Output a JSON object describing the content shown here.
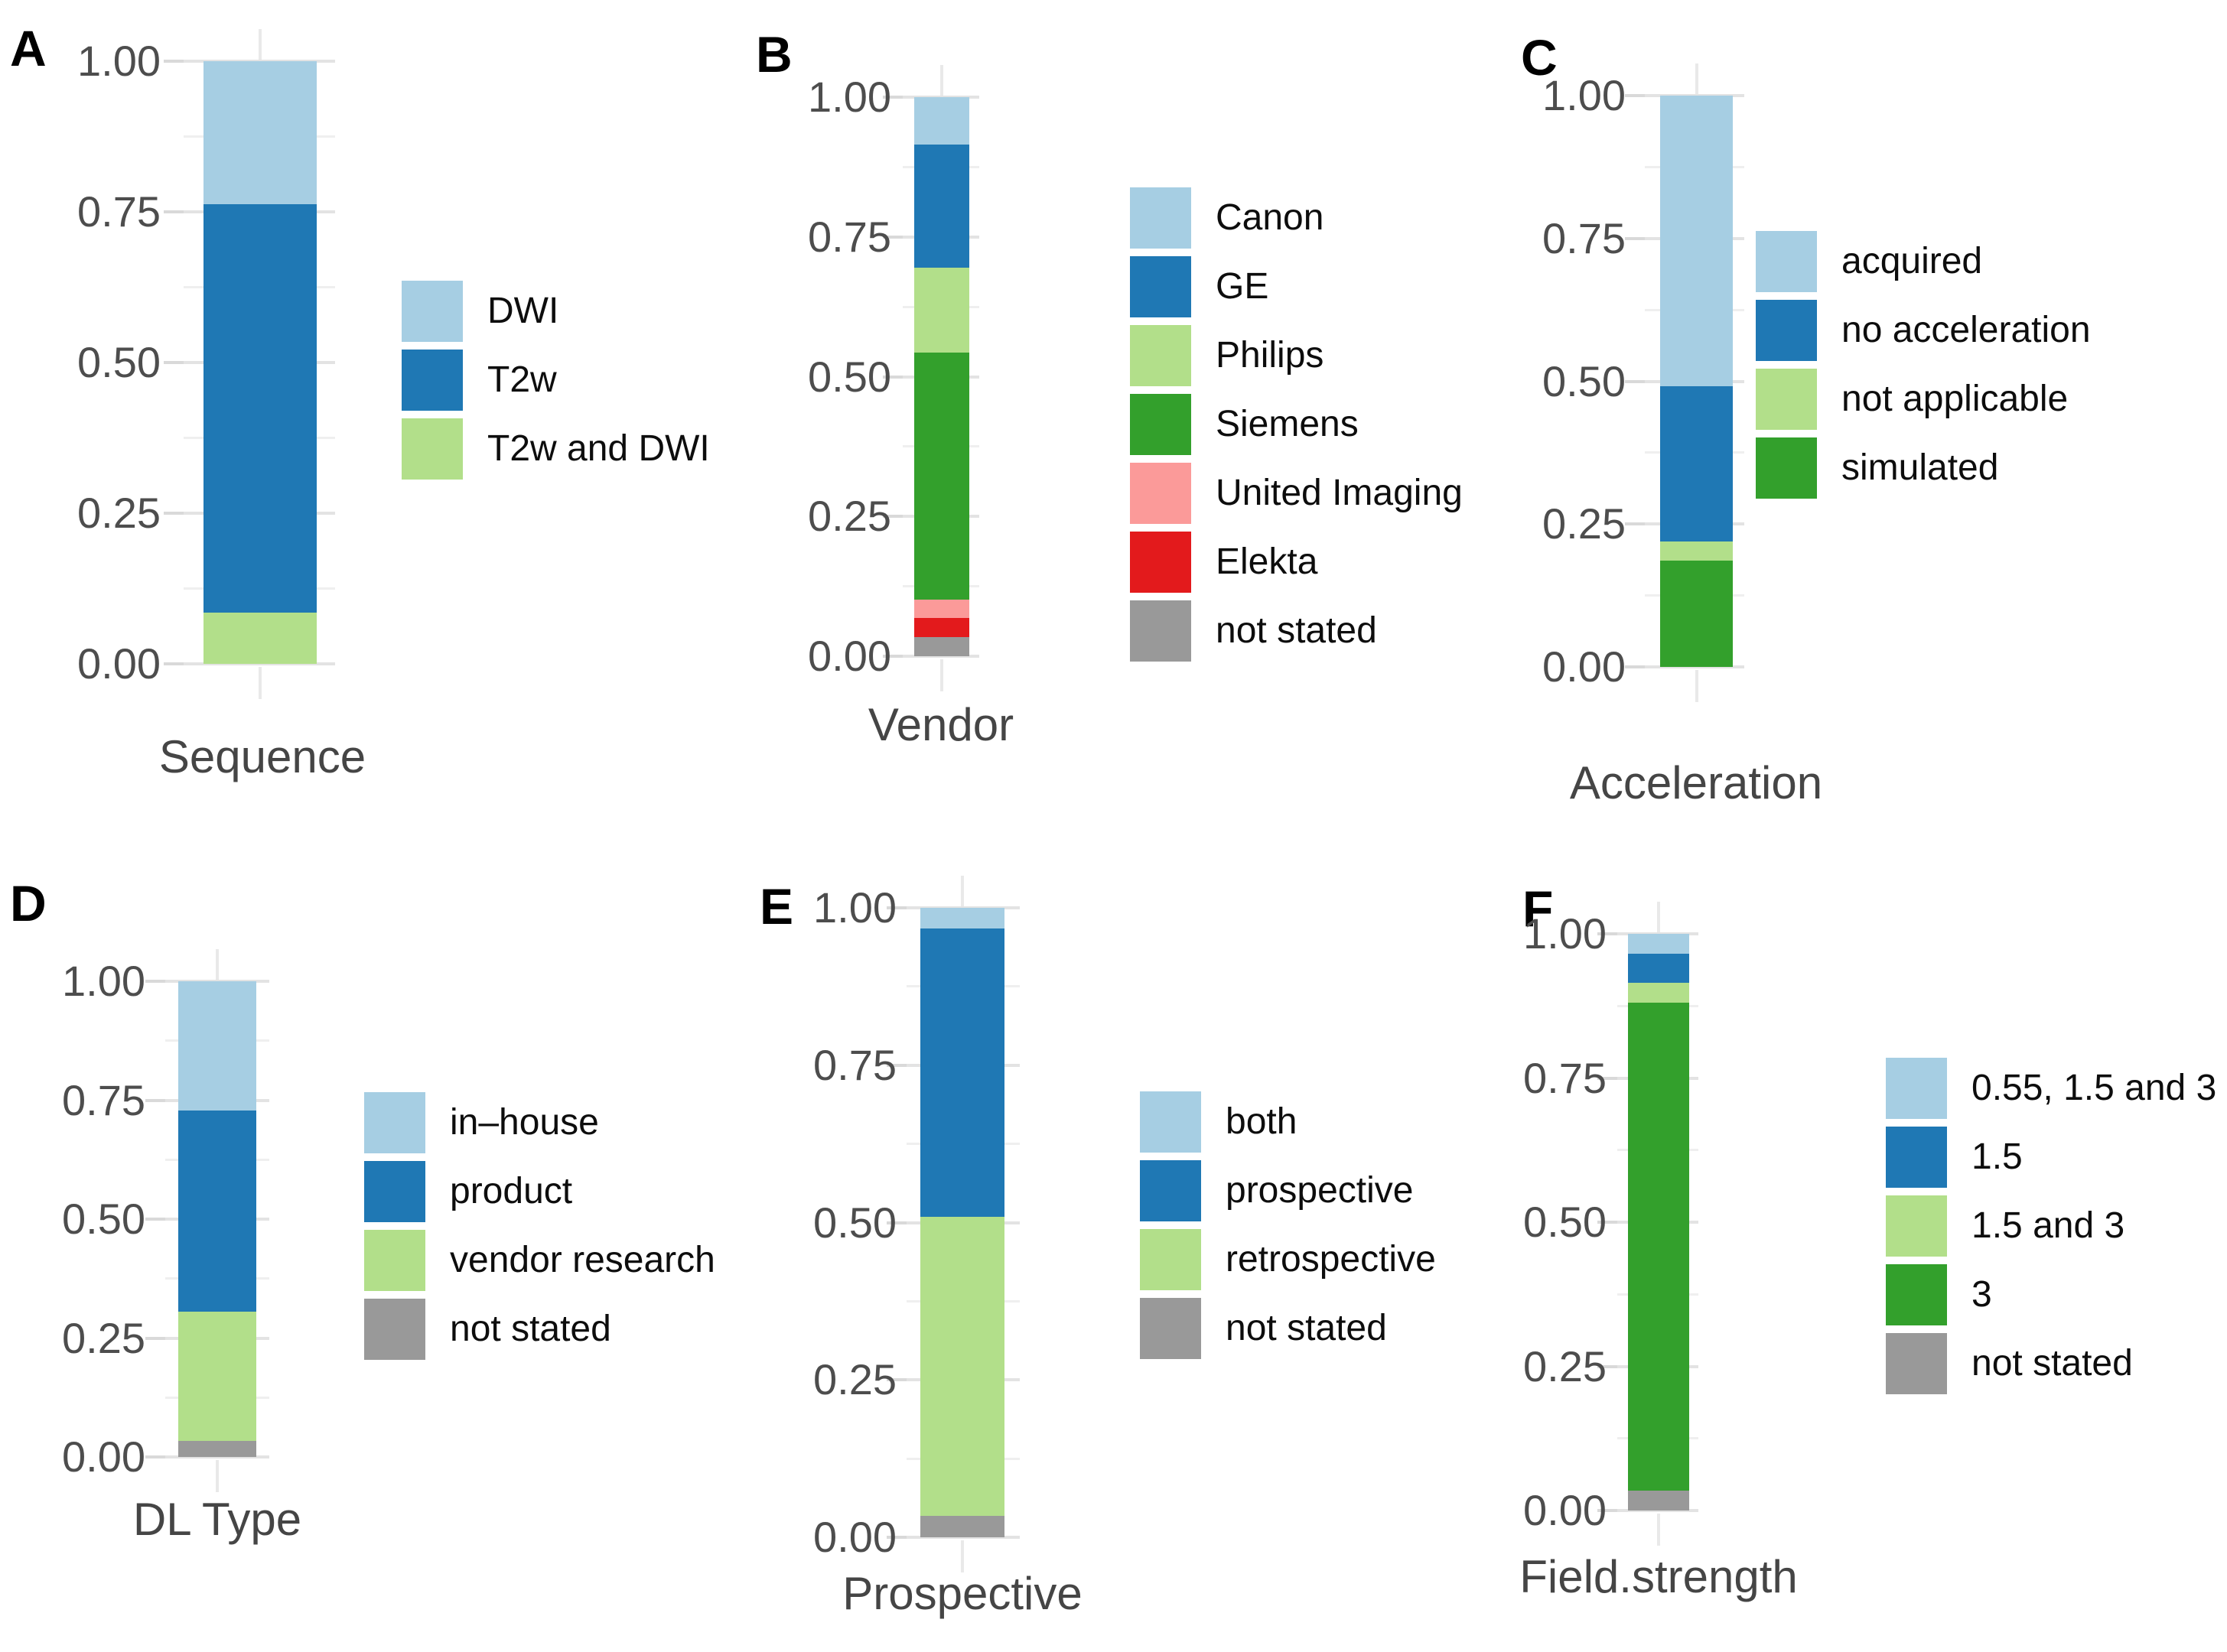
{
  "palette": {
    "light_blue": "#A6CEE3",
    "blue": "#1F78B4",
    "light_green": "#B2DF8A",
    "green": "#33A02C",
    "pink": "#FB9A99",
    "red": "#E31A1C",
    "gray": "#999999"
  },
  "axis": {
    "tick_labels": [
      "1.00",
      "0.75",
      "0.50",
      "0.25",
      "0.00"
    ],
    "tick_values": [
      1.0,
      0.75,
      0.5,
      0.25,
      0.0
    ],
    "minor_gridline_values": [
      0.875,
      0.625,
      0.375,
      0.125
    ],
    "text_color": "#4d4d4d"
  },
  "chart_data": [
    {
      "panel": "A",
      "type": "bar",
      "xlabel": "Sequence",
      "ylim": [
        0,
        1
      ],
      "grid": true,
      "legend_position": "right",
      "segments_bottom_to_top": [
        {
          "label": "T2w and DWI",
          "color": "light_green",
          "value": 0.085
        },
        {
          "label": "T2w",
          "color": "blue",
          "value": 0.678
        },
        {
          "label": "DWI",
          "color": "light_blue",
          "value": 0.237
        }
      ],
      "legend": [
        {
          "label": "DWI",
          "color": "light_blue"
        },
        {
          "label": "T2w",
          "color": "blue"
        },
        {
          "label": "T2w and DWI",
          "color": "light_green"
        }
      ]
    },
    {
      "panel": "B",
      "type": "bar",
      "xlabel": "Vendor",
      "ylim": [
        0,
        1
      ],
      "grid": true,
      "legend_position": "right",
      "segments_bottom_to_top": [
        {
          "label": "not stated",
          "color": "gray",
          "value": 0.034
        },
        {
          "label": "Elekta",
          "color": "red",
          "value": 0.034
        },
        {
          "label": "United Imaging",
          "color": "pink",
          "value": 0.034
        },
        {
          "label": "Siemens",
          "color": "green",
          "value": 0.441
        },
        {
          "label": "Philips",
          "color": "light_green",
          "value": 0.153
        },
        {
          "label": "GE",
          "color": "blue",
          "value": 0.22
        },
        {
          "label": "Canon",
          "color": "light_blue",
          "value": 0.085
        }
      ],
      "legend": [
        {
          "label": "Canon",
          "color": "light_blue"
        },
        {
          "label": "GE",
          "color": "blue"
        },
        {
          "label": "Philips",
          "color": "light_green"
        },
        {
          "label": "Siemens",
          "color": "green"
        },
        {
          "label": "United Imaging",
          "color": "pink"
        },
        {
          "label": "Elekta",
          "color": "red"
        },
        {
          "label": "not stated",
          "color": "gray"
        }
      ]
    },
    {
      "panel": "C",
      "type": "bar",
      "xlabel": "Acceleration",
      "ylim": [
        0,
        1
      ],
      "grid": true,
      "legend_position": "right",
      "segments_bottom_to_top": [
        {
          "label": "simulated",
          "color": "green",
          "value": 0.186
        },
        {
          "label": "not applicable",
          "color": "light_green",
          "value": 0.034
        },
        {
          "label": "no acceleration",
          "color": "blue",
          "value": 0.271
        },
        {
          "label": "acquired",
          "color": "light_blue",
          "value": 0.509
        }
      ],
      "legend": [
        {
          "label": "acquired",
          "color": "light_blue"
        },
        {
          "label": "no acceleration",
          "color": "blue"
        },
        {
          "label": "not applicable",
          "color": "light_green"
        },
        {
          "label": "simulated",
          "color": "green"
        }
      ]
    },
    {
      "panel": "D",
      "type": "bar",
      "xlabel": "DL Type",
      "ylim": [
        0,
        1
      ],
      "grid": true,
      "legend_position": "right",
      "segments_bottom_to_top": [
        {
          "label": "not stated",
          "color": "gray",
          "value": 0.034
        },
        {
          "label": "vendor research",
          "color": "light_green",
          "value": 0.271
        },
        {
          "label": "product",
          "color": "blue",
          "value": 0.424
        },
        {
          "label": "in–house",
          "color": "light_blue",
          "value": 0.271
        }
      ],
      "legend": [
        {
          "label": "in–house",
          "color": "light_blue"
        },
        {
          "label": "product",
          "color": "blue"
        },
        {
          "label": "vendor research",
          "color": "light_green"
        },
        {
          "label": "not stated",
          "color": "gray"
        }
      ]
    },
    {
      "panel": "E",
      "type": "bar",
      "xlabel": "Prospective",
      "ylim": [
        0,
        1
      ],
      "grid": true,
      "legend_position": "right",
      "segments_bottom_to_top": [
        {
          "label": "not stated",
          "color": "gray",
          "value": 0.034
        },
        {
          "label": "retrospective",
          "color": "light_green",
          "value": 0.475
        },
        {
          "label": "prospective",
          "color": "blue",
          "value": 0.458
        },
        {
          "label": "both",
          "color": "light_blue",
          "value": 0.033
        }
      ],
      "legend": [
        {
          "label": "both",
          "color": "light_blue"
        },
        {
          "label": "prospective",
          "color": "blue"
        },
        {
          "label": "retrospective",
          "color": "light_green"
        },
        {
          "label": "not stated",
          "color": "gray"
        }
      ]
    },
    {
      "panel": "F",
      "type": "bar",
      "xlabel": "Field.strength",
      "ylim": [
        0,
        1
      ],
      "grid": true,
      "legend_position": "right",
      "segments_bottom_to_top": [
        {
          "label": "not stated",
          "color": "gray",
          "value": 0.034
        },
        {
          "label": "3",
          "color": "green",
          "value": 0.847
        },
        {
          "label": "1.5 and 3",
          "color": "light_green",
          "value": 0.034
        },
        {
          "label": "1.5",
          "color": "blue",
          "value": 0.051
        },
        {
          "label": "0.55, 1.5 and 3",
          "color": "light_blue",
          "value": 0.034
        }
      ],
      "legend": [
        {
          "label": "0.55, 1.5 and 3",
          "color": "light_blue"
        },
        {
          "label": "1.5",
          "color": "blue"
        },
        {
          "label": "1.5 and 3",
          "color": "light_green"
        },
        {
          "label": "3",
          "color": "green"
        },
        {
          "label": "not stated",
          "color": "gray"
        }
      ]
    }
  ]
}
